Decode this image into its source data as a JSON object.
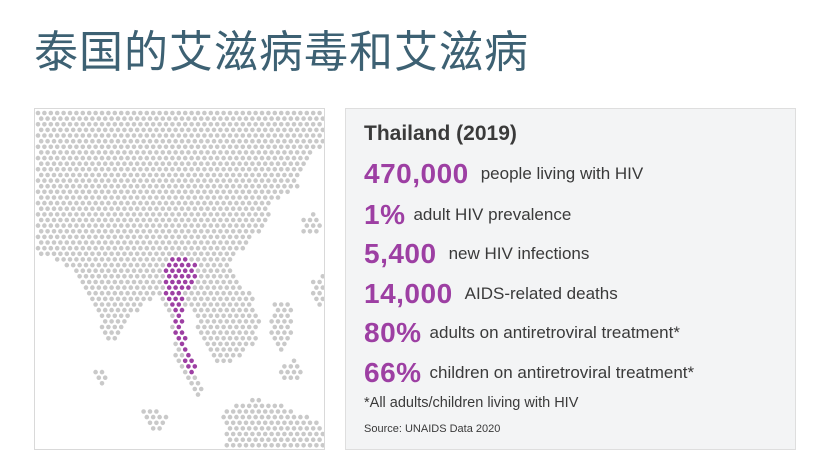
{
  "page": {
    "title": "泰国的艾滋病毒和艾滋病"
  },
  "map": {
    "highlight_country": "Thailand",
    "land_color": "#c9c9c9",
    "highlight_color": "#9d3fa3"
  },
  "stats": {
    "heading": "Thailand (2019)",
    "items": [
      {
        "value": "470,000",
        "label": "people living with HIV"
      },
      {
        "value": "1%",
        "label": "adult HIV prevalence"
      },
      {
        "value": "5,400",
        "label": "new HIV infections"
      },
      {
        "value": "14,000",
        "label": "AIDS-related deaths"
      },
      {
        "value": "80%",
        "label": "adults on antiretroviral treatment*"
      },
      {
        "value": "66%",
        "label": "children on antiretroviral treatment*"
      }
    ],
    "footnote": "*All adults/children living with HIV",
    "source": "Source: UNAIDS Data 2020"
  },
  "colors": {
    "title": "#3d6173",
    "accent": "#9d3fa3",
    "panel_background": "#f3f4f5"
  }
}
